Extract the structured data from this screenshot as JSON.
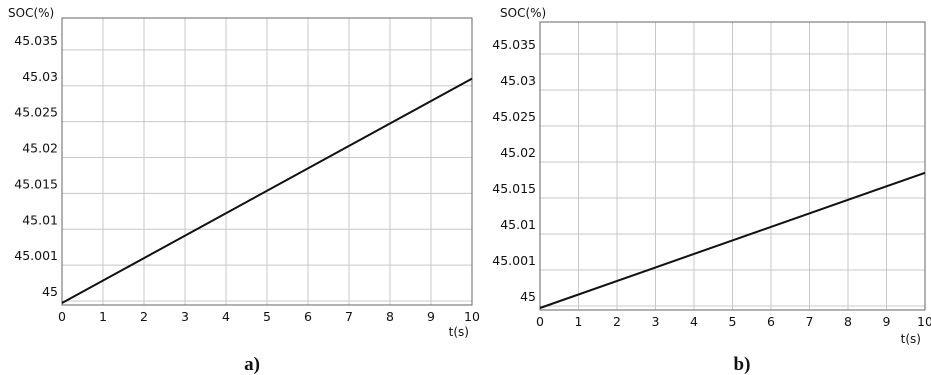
{
  "chart_data": [
    {
      "type": "line",
      "panel_label": "a)",
      "ylabel": "SOC(%)",
      "xlabel": "t(s)",
      "x_ticks": [
        "0",
        "1",
        "2",
        "3",
        "4",
        "5",
        "6",
        "7",
        "8",
        "9",
        "10"
      ],
      "y_ticks": [
        "45",
        "45.001",
        "45.01",
        "45.015",
        "45.02",
        "45.025",
        "45.03",
        "45.035"
      ],
      "xlim": [
        0,
        10
      ],
      "grid": true,
      "series": [
        {
          "x": [
            0,
            10
          ],
          "y": [
            45,
            45.031
          ]
        }
      ]
    },
    {
      "type": "line",
      "panel_label": "b)",
      "ylabel": "SOC(%)",
      "xlabel": "t(s)",
      "x_ticks": [
        "0",
        "1",
        "2",
        "3",
        "4",
        "5",
        "6",
        "7",
        "8",
        "9",
        "10"
      ],
      "y_ticks": [
        "45",
        "45.001",
        "45.01",
        "45.015",
        "45.02",
        "45.025",
        "45.03",
        "45.035"
      ],
      "xlim": [
        0,
        10
      ],
      "grid": true,
      "series": [
        {
          "x": [
            0,
            10
          ],
          "y": [
            45,
            45.0185
          ]
        }
      ]
    }
  ]
}
